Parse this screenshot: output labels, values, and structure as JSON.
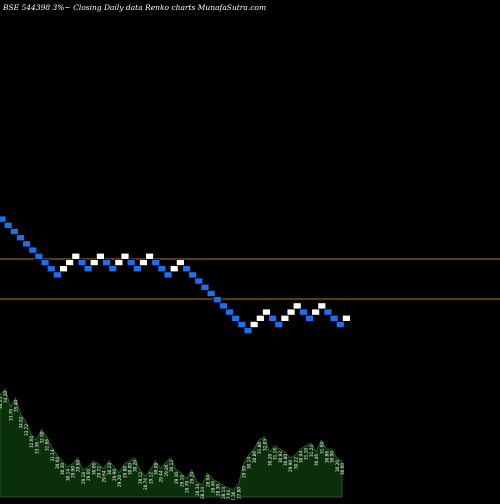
{
  "title": "BSE 544398 3%~  Closing Daily data  Renko  charts MunafaSutra.com",
  "colors": {
    "background": "#000000",
    "up_brick": "#ffffff",
    "down_brick": "#1e6ff0",
    "brick_edge": "#000000",
    "level_line": "#b8742c",
    "volume_fill": "#0b2e0b",
    "volume_line": "#2d6b2d",
    "label_text": "#ffffff"
  },
  "chart_data": [
    {
      "type": "renko",
      "brick_size_percent": 3,
      "grid": false,
      "levels": [
        {
          "name": "upper"
        },
        {
          "name": "lower"
        }
      ],
      "bricks": [
        {
          "direction": "down",
          "level": 0
        },
        {
          "direction": "down",
          "level": 1
        },
        {
          "direction": "down",
          "level": 2
        },
        {
          "direction": "down",
          "level": 3
        },
        {
          "direction": "down",
          "level": 4
        },
        {
          "direction": "down",
          "level": 5
        },
        {
          "direction": "down",
          "level": 6
        },
        {
          "direction": "down",
          "level": 7
        },
        {
          "direction": "down",
          "level": 8
        },
        {
          "direction": "down",
          "level": 9
        },
        {
          "direction": "up",
          "level": 8
        },
        {
          "direction": "up",
          "level": 7
        },
        {
          "direction": "up",
          "level": 6
        },
        {
          "direction": "down",
          "level": 7
        },
        {
          "direction": "down",
          "level": 8
        },
        {
          "direction": "up",
          "level": 7
        },
        {
          "direction": "up",
          "level": 6
        },
        {
          "direction": "down",
          "level": 7
        },
        {
          "direction": "down",
          "level": 8
        },
        {
          "direction": "up",
          "level": 7
        },
        {
          "direction": "up",
          "level": 6
        },
        {
          "direction": "down",
          "level": 7
        },
        {
          "direction": "down",
          "level": 8
        },
        {
          "direction": "up",
          "level": 7
        },
        {
          "direction": "up",
          "level": 6
        },
        {
          "direction": "down",
          "level": 7
        },
        {
          "direction": "down",
          "level": 8
        },
        {
          "direction": "down",
          "level": 9
        },
        {
          "direction": "up",
          "level": 8
        },
        {
          "direction": "up",
          "level": 7
        },
        {
          "direction": "down",
          "level": 8
        },
        {
          "direction": "down",
          "level": 9
        },
        {
          "direction": "down",
          "level": 10
        },
        {
          "direction": "down",
          "level": 11
        },
        {
          "direction": "down",
          "level": 12
        },
        {
          "direction": "down",
          "level": 13
        },
        {
          "direction": "down",
          "level": 14
        },
        {
          "direction": "down",
          "level": 15
        },
        {
          "direction": "down",
          "level": 16
        },
        {
          "direction": "down",
          "level": 17
        },
        {
          "direction": "down",
          "level": 18
        },
        {
          "direction": "up",
          "level": 17
        },
        {
          "direction": "up",
          "level": 16
        },
        {
          "direction": "up",
          "level": 15
        },
        {
          "direction": "down",
          "level": 16
        },
        {
          "direction": "down",
          "level": 17
        },
        {
          "direction": "up",
          "level": 16
        },
        {
          "direction": "up",
          "level": 15
        },
        {
          "direction": "up",
          "level": 14
        },
        {
          "direction": "down",
          "level": 15
        },
        {
          "direction": "down",
          "level": 16
        },
        {
          "direction": "up",
          "level": 15
        },
        {
          "direction": "up",
          "level": 14
        },
        {
          "direction": "down",
          "level": 15
        },
        {
          "direction": "down",
          "level": 16
        },
        {
          "direction": "down",
          "level": 17
        },
        {
          "direction": "up",
          "level": 16
        }
      ],
      "volume_labels": [
        "34.15",
        "34.20",
        "33.70",
        "35.40",
        "34.82",
        "33.72",
        "32.60",
        "33.36",
        "32.90",
        "31.66",
        "31.14",
        "30.60",
        "30.30",
        "30.14",
        "29.90",
        "29.60",
        "29.18",
        "29.60",
        "30.06",
        "29.72",
        "29.64",
        "30.24",
        "29.90",
        "29.20",
        "29.80",
        "30.00",
        "30.20",
        "29.12",
        "28.76",
        "29.12",
        "30.08",
        "29.44",
        "29.86",
        "30.12",
        "29.36",
        "29.10",
        "28.78",
        "29.20",
        "28.34",
        "28.24",
        "28.94",
        "28.46",
        "28.30",
        "28.14",
        "27.64",
        "27.36",
        "27.80",
        "29.50",
        "30.14",
        "30.86",
        "31.80",
        "32.03",
        "30.28",
        "31.16",
        "30.92",
        "30.80",
        "29.90",
        "30.22",
        "30.94",
        "31.10",
        "31.24",
        "30.46",
        "31.60",
        "30.86",
        "30.90",
        "30.20",
        "30.00"
      ],
      "volume_values": [
        68,
        72,
        60,
        66,
        55,
        50,
        42,
        38,
        45,
        40,
        33,
        28,
        24,
        20,
        22,
        26,
        18,
        20,
        24,
        22,
        19,
        24,
        20,
        16,
        22,
        24,
        26,
        18,
        14,
        18,
        24,
        19,
        23,
        26,
        18,
        16,
        12,
        18,
        10,
        8,
        16,
        12,
        10,
        8,
        6,
        5,
        8,
        22,
        28,
        32,
        38,
        40,
        30,
        34,
        32,
        30,
        26,
        28,
        32,
        34,
        36,
        30,
        38,
        32,
        32,
        26,
        24
      ]
    }
  ]
}
